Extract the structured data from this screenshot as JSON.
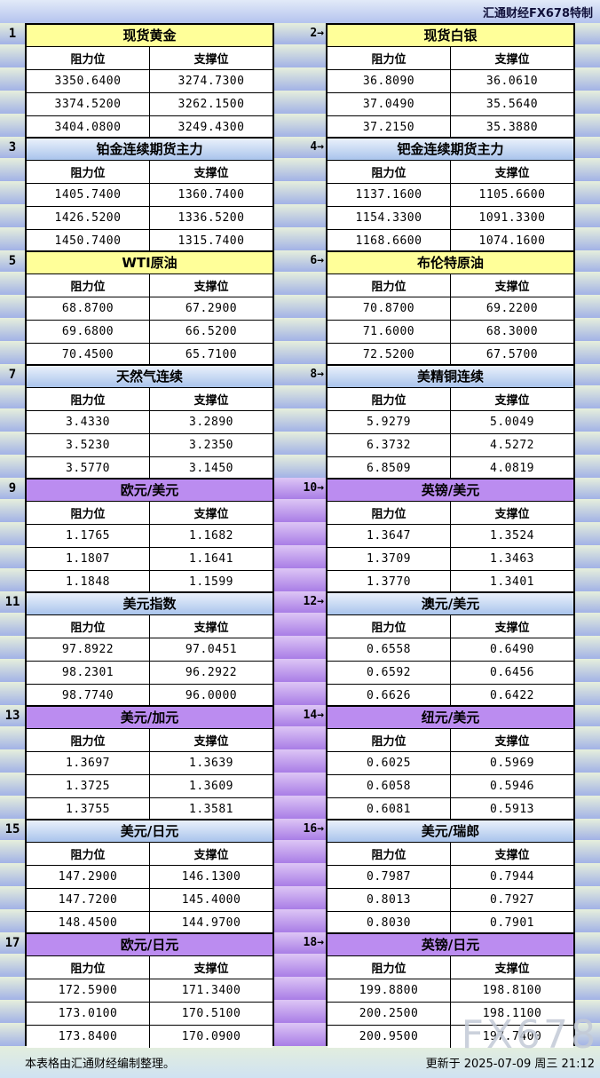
{
  "header": {
    "brand": "汇通财经FX678特制"
  },
  "columns": {
    "resistance": "阻力位",
    "support": "支撑位"
  },
  "colors": {
    "yellow_title": "#ffff99",
    "blue_title_top": "#eaf1fb",
    "blue_title_bottom": "#a9c4ec",
    "purple_title": "#bb8cf0",
    "gutter_top": "#e6efdc",
    "gutter_bottom": "#a2b2e6",
    "spacer_purple_top": "#ddc6f5",
    "spacer_purple_bottom": "#a97de6",
    "topbar_top": "#e2eaf8",
    "topbar_bottom": "#b4c3ee",
    "footer_top": "#e3eedd",
    "footer_bottom": "#cfe2f2",
    "border": "#000000",
    "watermark": "#c3cad6"
  },
  "sections": [
    {
      "spacer": "green",
      "left": {
        "num": "1",
        "title": "现货黄金",
        "theme": "yellow",
        "rows": [
          [
            "3350.6400",
            "3274.7300"
          ],
          [
            "3374.5200",
            "3262.1500"
          ],
          [
            "3404.0800",
            "3249.4300"
          ]
        ]
      },
      "right": {
        "num": "2→",
        "title": "现货白银",
        "theme": "yellow",
        "rows": [
          [
            "36.8090",
            "36.0610"
          ],
          [
            "37.0490",
            "35.5640"
          ],
          [
            "37.2150",
            "35.3880"
          ]
        ]
      }
    },
    {
      "spacer": "green",
      "left": {
        "num": "3",
        "title": "铂金连续期货主力",
        "theme": "blue",
        "rows": [
          [
            "1405.7400",
            "1360.7400"
          ],
          [
            "1426.5200",
            "1336.5200"
          ],
          [
            "1450.7400",
            "1315.7400"
          ]
        ]
      },
      "right": {
        "num": "4→",
        "title": "钯金连续期货主力",
        "theme": "blue",
        "rows": [
          [
            "1137.1600",
            "1105.6600"
          ],
          [
            "1154.3300",
            "1091.3300"
          ],
          [
            "1168.6600",
            "1074.1600"
          ]
        ]
      }
    },
    {
      "spacer": "green",
      "left": {
        "num": "5",
        "title": "WTI原油",
        "theme": "yellow",
        "rows": [
          [
            "68.8700",
            "67.2900"
          ],
          [
            "69.6800",
            "66.5200"
          ],
          [
            "70.4500",
            "65.7100"
          ]
        ]
      },
      "right": {
        "num": "6→",
        "title": "布伦特原油",
        "theme": "yellow",
        "rows": [
          [
            "70.8700",
            "69.2200"
          ],
          [
            "71.6000",
            "68.3000"
          ],
          [
            "72.5200",
            "67.5700"
          ]
        ]
      }
    },
    {
      "spacer": "green",
      "left": {
        "num": "7",
        "title": "天然气连续",
        "theme": "blue",
        "rows": [
          [
            "3.4330",
            "3.2890"
          ],
          [
            "3.5230",
            "3.2350"
          ],
          [
            "3.5770",
            "3.1450"
          ]
        ]
      },
      "right": {
        "num": "8→",
        "title": "美精铜连续",
        "theme": "blue",
        "rows": [
          [
            "5.9279",
            "5.0049"
          ],
          [
            "6.3732",
            "4.5272"
          ],
          [
            "6.8509",
            "4.0819"
          ]
        ]
      }
    },
    {
      "spacer": "purple",
      "left": {
        "num": "9",
        "title": "欧元/美元",
        "theme": "purple",
        "rows": [
          [
            "1.1765",
            "1.1682"
          ],
          [
            "1.1807",
            "1.1641"
          ],
          [
            "1.1848",
            "1.1599"
          ]
        ]
      },
      "right": {
        "num": "10→",
        "title": "英镑/美元",
        "theme": "purple",
        "rows": [
          [
            "1.3647",
            "1.3524"
          ],
          [
            "1.3709",
            "1.3463"
          ],
          [
            "1.3770",
            "1.3401"
          ]
        ]
      }
    },
    {
      "spacer": "purple",
      "left": {
        "num": "11",
        "title": "美元指数",
        "theme": "blue",
        "rows": [
          [
            "97.8922",
            "97.0451"
          ],
          [
            "98.2301",
            "96.2922"
          ],
          [
            "98.7740",
            "96.0000"
          ]
        ]
      },
      "right": {
        "num": "12→",
        "title": "澳元/美元",
        "theme": "blue",
        "rows": [
          [
            "0.6558",
            "0.6490"
          ],
          [
            "0.6592",
            "0.6456"
          ],
          [
            "0.6626",
            "0.6422"
          ]
        ]
      }
    },
    {
      "spacer": "purple",
      "left": {
        "num": "13",
        "title": "美元/加元",
        "theme": "purple",
        "rows": [
          [
            "1.3697",
            "1.3639"
          ],
          [
            "1.3725",
            "1.3609"
          ],
          [
            "1.3755",
            "1.3581"
          ]
        ]
      },
      "right": {
        "num": "14→",
        "title": "纽元/美元",
        "theme": "purple",
        "rows": [
          [
            "0.6025",
            "0.5969"
          ],
          [
            "0.6058",
            "0.5946"
          ],
          [
            "0.6081",
            "0.5913"
          ]
        ]
      }
    },
    {
      "spacer": "purple",
      "left": {
        "num": "15",
        "title": "美元/日元",
        "theme": "blue",
        "rows": [
          [
            "147.2900",
            "146.1300"
          ],
          [
            "147.7200",
            "145.4000"
          ],
          [
            "148.4500",
            "144.9700"
          ]
        ]
      },
      "right": {
        "num": "16→",
        "title": "美元/瑞郎",
        "theme": "blue",
        "rows": [
          [
            "0.7987",
            "0.7944"
          ],
          [
            "0.8013",
            "0.7927"
          ],
          [
            "0.8030",
            "0.7901"
          ]
        ]
      }
    },
    {
      "spacer": "purple",
      "left": {
        "num": "17",
        "title": "欧元/日元",
        "theme": "purple",
        "rows": [
          [
            "172.5900",
            "171.3400"
          ],
          [
            "173.0100",
            "170.5100"
          ],
          [
            "173.8400",
            "170.0900"
          ]
        ]
      },
      "right": {
        "num": "18→",
        "title": "英镑/日元",
        "theme": "purple",
        "rows": [
          [
            "199.8800",
            "198.8100"
          ],
          [
            "200.2500",
            "198.1100"
          ],
          [
            "200.9500",
            "197.7400"
          ]
        ]
      }
    }
  ],
  "footer": {
    "note": "本表格由汇通财经编制整理。",
    "updated": "更新于 2025-07-09 周三 21:12",
    "watermark": "FX678"
  }
}
